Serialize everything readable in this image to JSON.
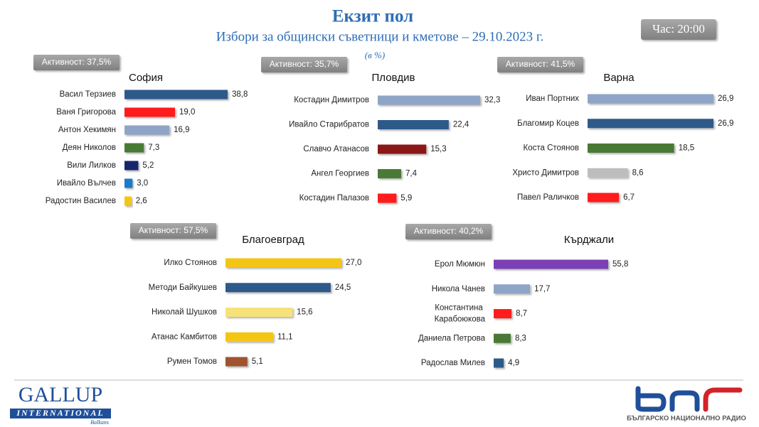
{
  "header": {
    "title": "Екзит пол",
    "subtitle": "Избори за общински съветници и кметове – 29.10.2023 г.",
    "unit": "(в %)",
    "time": "Час: 20:00"
  },
  "chart_data": [
    {
      "type": "bar",
      "orientation": "horizontal",
      "title": "София",
      "annotation": "Активност: 37,5%",
      "categories": [
        "Васил Терзиев",
        "Ваня Григорова",
        "Антон Хекимян",
        "Деян Николов",
        "Вили Лилков",
        "Ивайло Вълчев",
        "Радостин Василев"
      ],
      "values": [
        38.8,
        19.0,
        16.9,
        7.3,
        5.2,
        3.0,
        2.6
      ],
      "value_labels": [
        "38,8",
        "19,0",
        "16,9",
        "7,3",
        "5,2",
        "3,0",
        "2,6"
      ],
      "colors": [
        "#2e5a8a",
        "#ff1a1a",
        "#8fa5c8",
        "#4a7a34",
        "#14286e",
        "#1f7ac6",
        "#f5c518"
      ]
    },
    {
      "type": "bar",
      "orientation": "horizontal",
      "title": "Пловдив",
      "annotation": "Активност: 35,7%",
      "categories": [
        "Костадин Димитров",
        "Ивайло Старибратов",
        "Славчо Атанасов",
        "Ангел Георгиев",
        "Костадин Палазов"
      ],
      "values": [
        32.3,
        22.4,
        15.3,
        7.4,
        5.9
      ],
      "value_labels": [
        "32,3",
        "22,4",
        "15,3",
        "7,4",
        "5,9"
      ],
      "colors": [
        "#8fa5c8",
        "#2e5a8a",
        "#8b1414",
        "#4a7a34",
        "#ff1a1a"
      ]
    },
    {
      "type": "bar",
      "orientation": "horizontal",
      "title": "Варна",
      "annotation": "Активност: 41,5%",
      "categories": [
        "Иван Портних",
        "Благомир Коцев",
        "Коста Стоянов",
        "Христо Димитров",
        "Павел Раличков"
      ],
      "values": [
        26.9,
        26.9,
        18.5,
        8.6,
        6.7
      ],
      "value_labels": [
        "26,9",
        "26,9",
        "18,5",
        "8,6",
        "6,7"
      ],
      "colors": [
        "#8fa5c8",
        "#2e5a8a",
        "#4a7a34",
        "#bdbdbd",
        "#ff1a1a"
      ]
    },
    {
      "type": "bar",
      "orientation": "horizontal",
      "title": "Благоевград",
      "annotation": "Активност: 57,5%",
      "categories": [
        "Илко Стоянов",
        "Методи Байкушев",
        "Николай Шушков",
        "Атанас Камбитов",
        "Румен Томов"
      ],
      "values": [
        27.0,
        24.5,
        15.6,
        11.1,
        5.1
      ],
      "value_labels": [
        "27,0",
        "24,5",
        "15,6",
        "11,1",
        "5,1"
      ],
      "colors": [
        "#f5c518",
        "#2e5a8a",
        "#f7e27a",
        "#f5c518",
        "#a0522d"
      ]
    },
    {
      "type": "bar",
      "orientation": "horizontal",
      "title": "Кърджали",
      "annotation": "Активност: 40,2%",
      "categories": [
        "Ерол Мюмюн",
        "Никола Чанев",
        "Константина Карабоюкова",
        "Даниела Петрова",
        "Радослав Милев"
      ],
      "values": [
        55.8,
        17.7,
        8.7,
        8.3,
        4.9
      ],
      "value_labels": [
        "55,8",
        "17,7",
        "8,7",
        "8,3",
        "4,9"
      ],
      "colors": [
        "#7b3fb5",
        "#8fa5c8",
        "#ff1a1a",
        "#4a7a34",
        "#2e5a8a"
      ]
    }
  ],
  "logos": {
    "gallup": "GALLUP",
    "gallup_sub": "INTERNATIONAL",
    "gallup_region": "Balkans",
    "bnr": "БЪЛГАРСКО НАЦИОНАЛНО РАДИО"
  }
}
